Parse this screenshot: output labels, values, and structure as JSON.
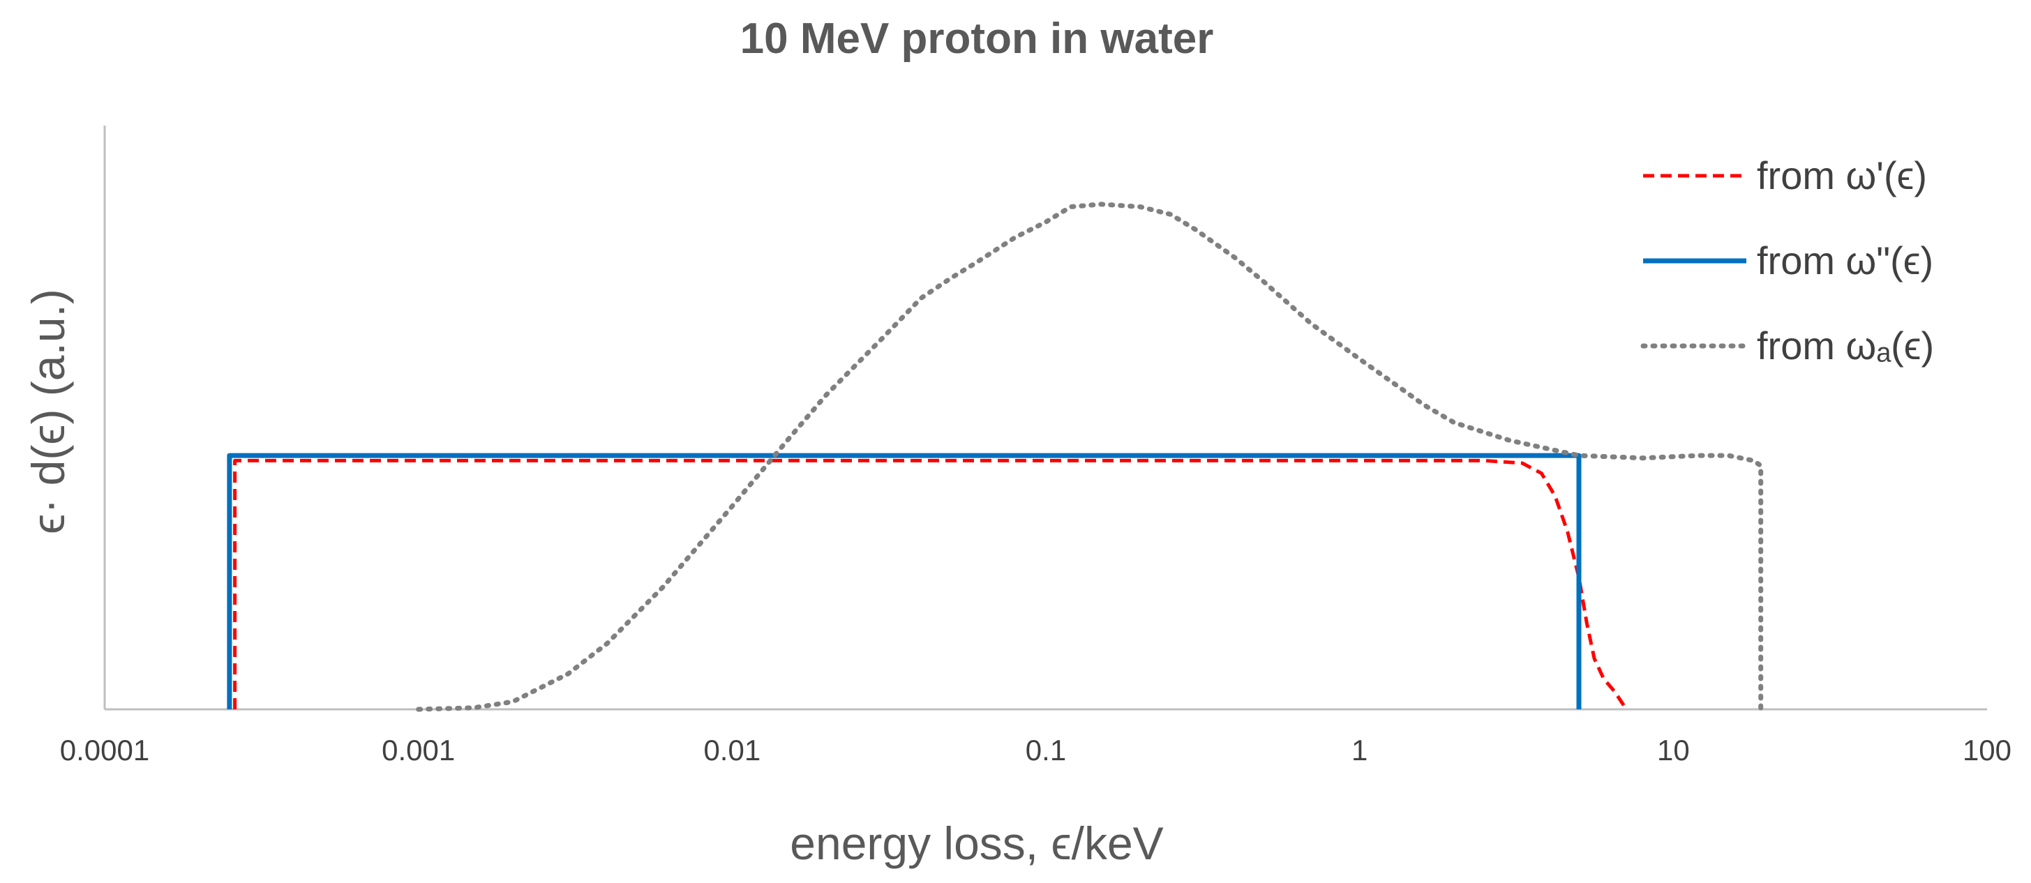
{
  "chart_data": {
    "type": "line",
    "title": "10 MeV proton in water",
    "xlabel": "energy loss, ϵ/keV",
    "ylabel": "ϵ· d(ϵ) (a.u.)",
    "xscale": "log",
    "xlim": [
      0.0001,
      100
    ],
    "ylim": [
      0,
      1.15
    ],
    "x_ticks": [
      {
        "value": 0.0001,
        "label": "0.0001"
      },
      {
        "value": 0.001,
        "label": "0.001"
      },
      {
        "value": 0.01,
        "label": "0.01"
      },
      {
        "value": 0.1,
        "label": "0.1"
      },
      {
        "value": 1,
        "label": "1"
      },
      {
        "value": 10,
        "label": "10"
      },
      {
        "value": 100,
        "label": "100"
      }
    ],
    "legend_position": "top-right",
    "series": [
      {
        "name": "from ω'(ϵ)",
        "legend_label": "from ω'(ϵ)",
        "style": "dashed",
        "color": "#ff0000",
        "points": [
          [
            0.00026,
            0
          ],
          [
            0.00026,
            0.49
          ],
          [
            0.01,
            0.49
          ],
          [
            1,
            0.49
          ],
          [
            2.5,
            0.49
          ],
          [
            3.3,
            0.485
          ],
          [
            3.8,
            0.465
          ],
          [
            4.2,
            0.42
          ],
          [
            4.6,
            0.35
          ],
          [
            5.0,
            0.26
          ],
          [
            5.3,
            0.17
          ],
          [
            5.6,
            0.1
          ],
          [
            6.0,
            0.06
          ],
          [
            6.5,
            0.035
          ],
          [
            7.0,
            0.005
          ]
        ]
      },
      {
        "name": "from ω\"(ϵ)",
        "legend_label": "from ω\"(ϵ)",
        "style": "solid",
        "color": "#0070c0",
        "points": [
          [
            0.00025,
            0
          ],
          [
            0.00025,
            0.5
          ],
          [
            5.0,
            0.5
          ],
          [
            5.0,
            0
          ]
        ]
      },
      {
        "name": "from ωa(ϵ)",
        "legend_label": "from ωₐ(ϵ)",
        "style": "dotted",
        "color": "#808080",
        "points": [
          [
            0.001,
            0
          ],
          [
            0.0015,
            0.003
          ],
          [
            0.002,
            0.015
          ],
          [
            0.003,
            0.07
          ],
          [
            0.004,
            0.13
          ],
          [
            0.006,
            0.24
          ],
          [
            0.008,
            0.33
          ],
          [
            0.01,
            0.4
          ],
          [
            0.015,
            0.53
          ],
          [
            0.02,
            0.62
          ],
          [
            0.03,
            0.73
          ],
          [
            0.04,
            0.81
          ],
          [
            0.05,
            0.85
          ],
          [
            0.06,
            0.88
          ],
          [
            0.08,
            0.93
          ],
          [
            0.1,
            0.96
          ],
          [
            0.12,
            0.99
          ],
          [
            0.15,
            0.995
          ],
          [
            0.2,
            0.99
          ],
          [
            0.25,
            0.975
          ],
          [
            0.3,
            0.945
          ],
          [
            0.4,
            0.89
          ],
          [
            0.5,
            0.84
          ],
          [
            0.7,
            0.76
          ],
          [
            1.0,
            0.69
          ],
          [
            1.3,
            0.64
          ],
          [
            1.6,
            0.6
          ],
          [
            2.0,
            0.565
          ],
          [
            3.0,
            0.53
          ],
          [
            5.0,
            0.5
          ],
          [
            8.0,
            0.495
          ],
          [
            12.0,
            0.5
          ],
          [
            15.0,
            0.5
          ],
          [
            18.0,
            0.49
          ],
          [
            19.0,
            0.48
          ],
          [
            19.0,
            0
          ]
        ]
      }
    ]
  }
}
